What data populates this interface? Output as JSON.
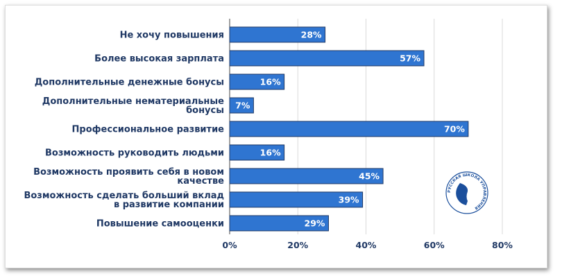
{
  "chart_data": {
    "type": "bar",
    "orientation": "horizontal",
    "categories": [
      [
        "Не хочу повышения"
      ],
      [
        "Более высокая зарплата"
      ],
      [
        "Дополнительные денежные бонусы"
      ],
      [
        "Дополнительные нематериальные",
        "бонусы"
      ],
      [
        "Профессиональное развитие"
      ],
      [
        "Возможность руководить людьми"
      ],
      [
        "Возможность проявить себя в новом",
        "качестве"
      ],
      [
        "Возможность сделать больший вклад",
        "в развитие компании"
      ],
      [
        "Повышение самооценки"
      ]
    ],
    "values": [
      28,
      57,
      16,
      7,
      70,
      16,
      45,
      39,
      29
    ],
    "data_labels": [
      "28%",
      "57%",
      "16%",
      "7%",
      "70%",
      "16%",
      "45%",
      "39%",
      "29%"
    ],
    "x_ticks": [
      "0%",
      "20%",
      "40%",
      "60%",
      "80%"
    ],
    "xlim": [
      0,
      80
    ],
    "grid": true,
    "bar_color": "#2f75d1",
    "bar_border": "#1f3864",
    "text_color": "#1f3864",
    "title": "",
    "xlabel": "",
    "ylabel": ""
  },
  "logo": {
    "text": "РУССКАЯ ШКОЛА УПРАВЛЕНИЯ",
    "color": "#1b4f9c"
  }
}
